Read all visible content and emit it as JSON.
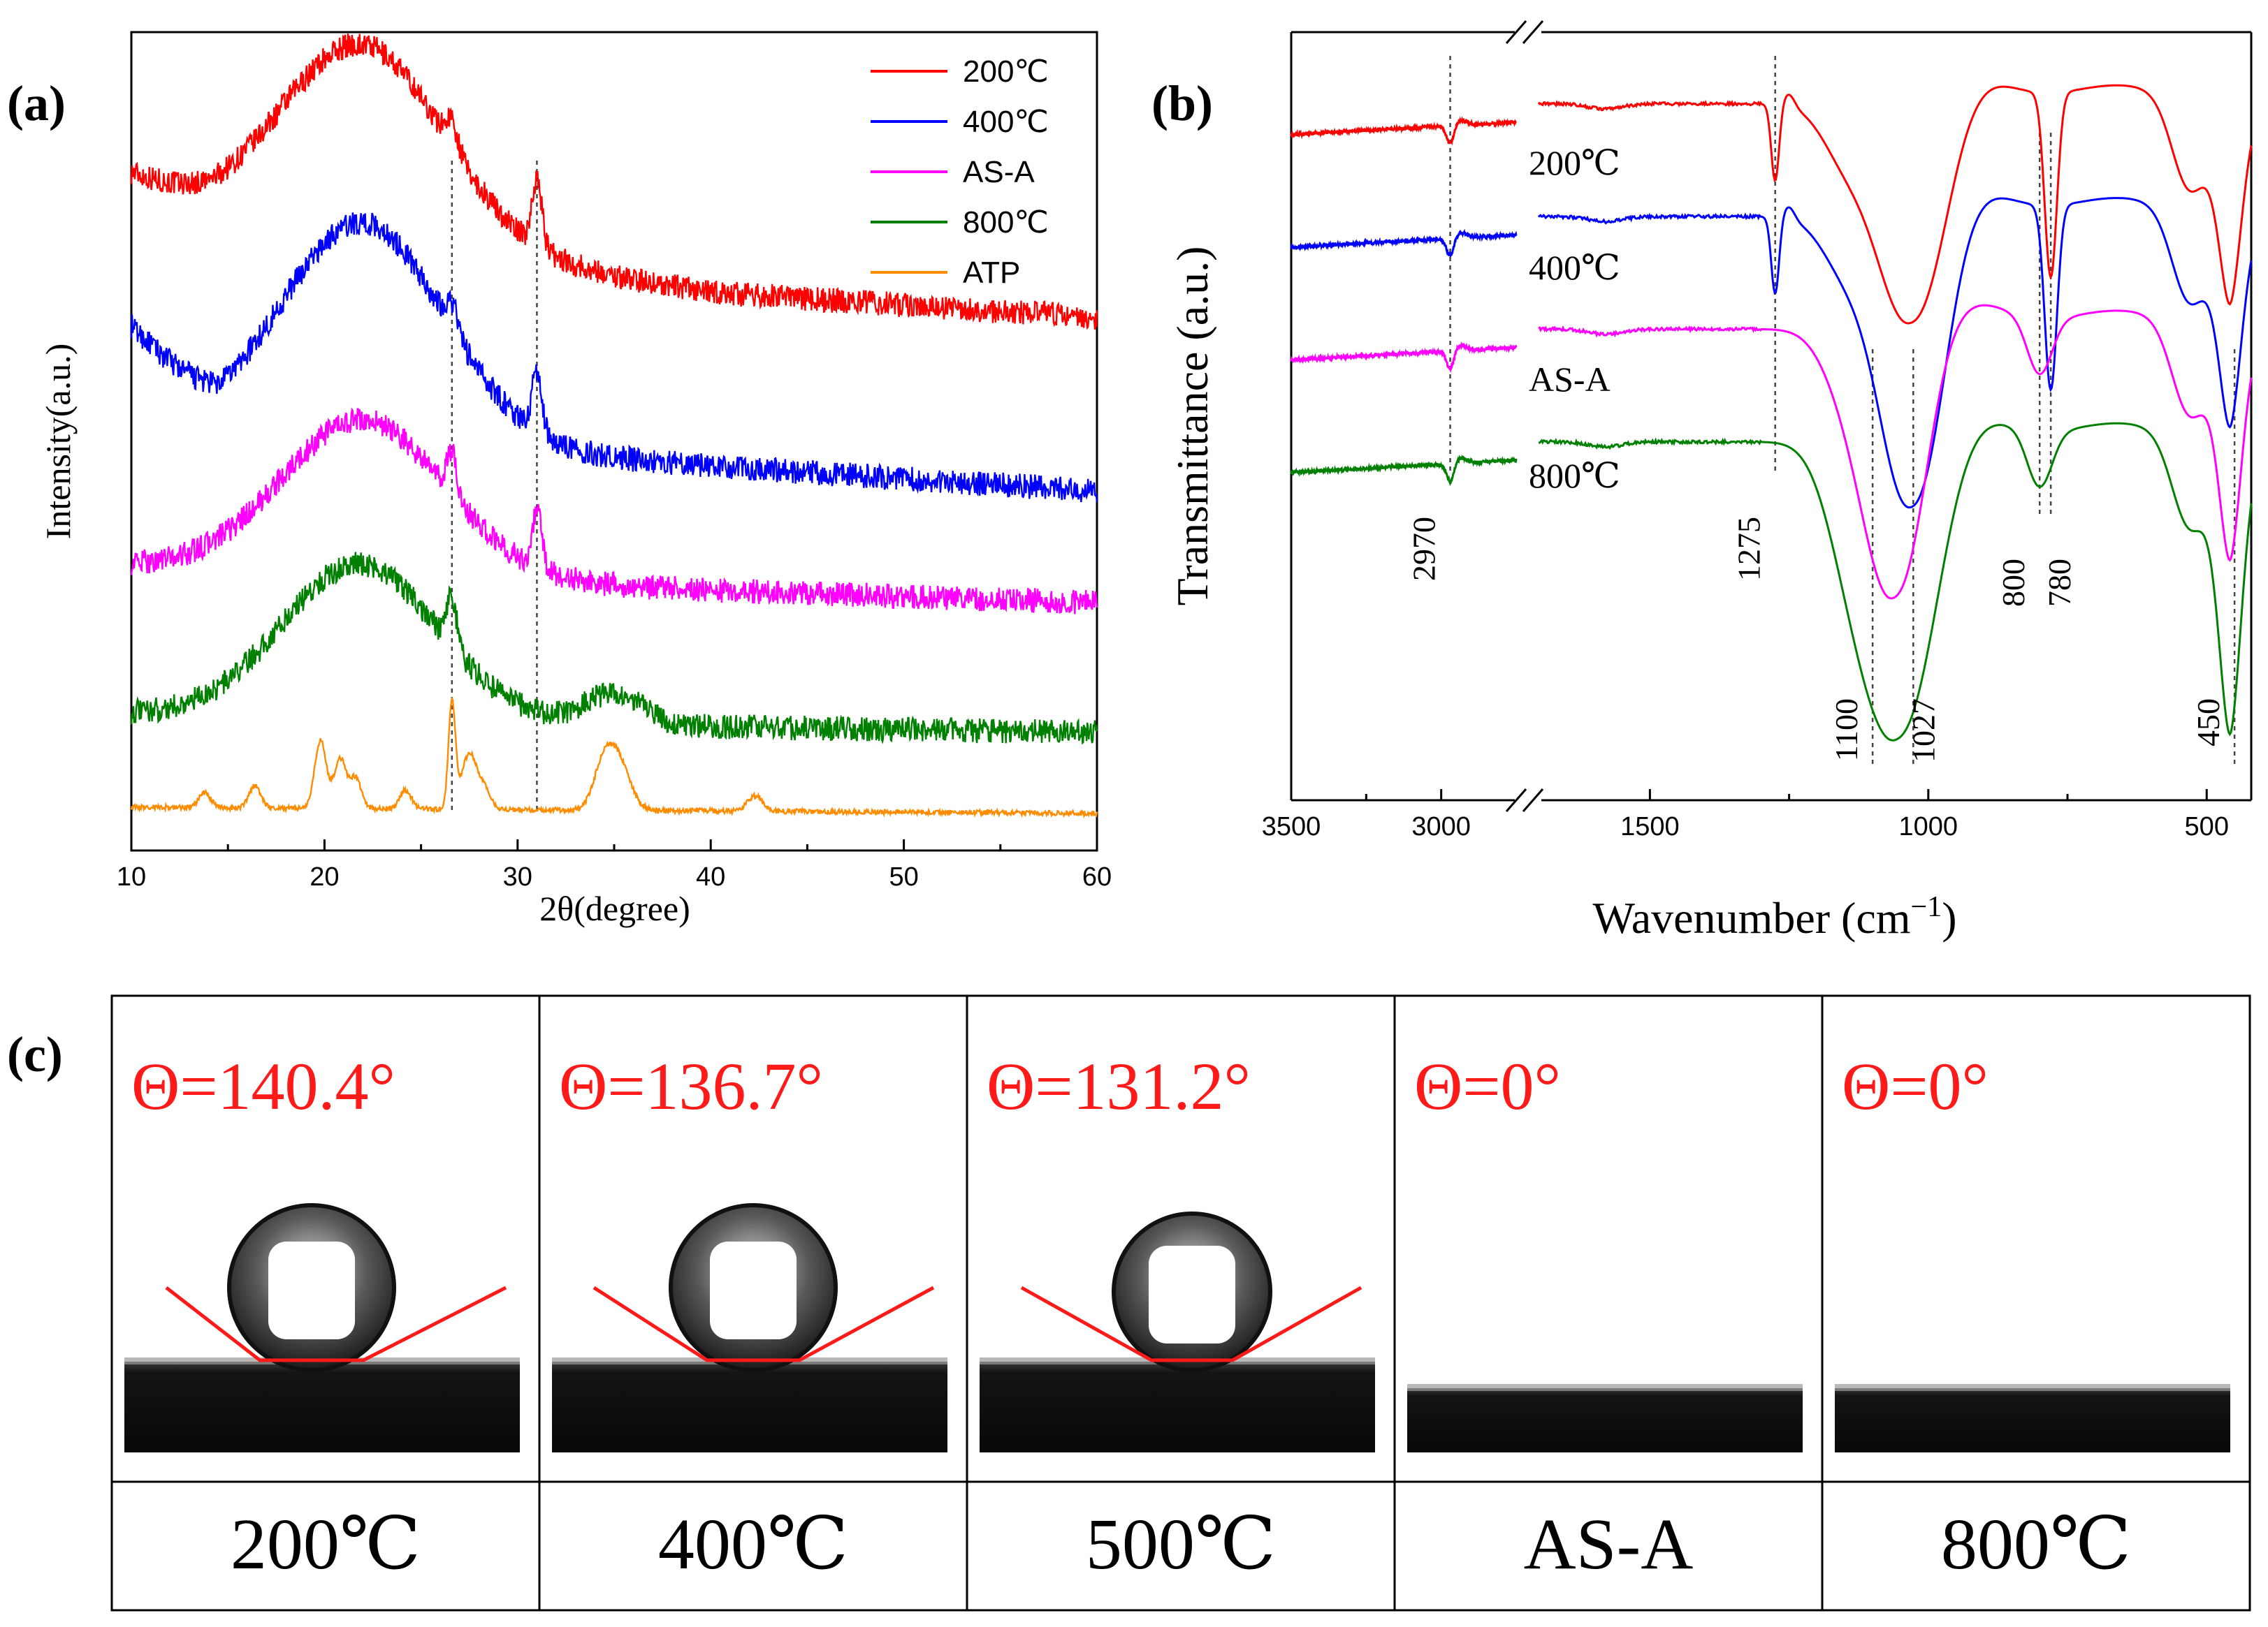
{
  "chart_data": [
    {
      "id": "a",
      "type": "line",
      "panel_label": "(a)",
      "xlabel": "2θ(degree)",
      "ylabel": "Intensity(a.u.)",
      "xlim": [
        10,
        60
      ],
      "xticks": [
        "10",
        "20",
        "30",
        "40",
        "50",
        "60"
      ],
      "yticks": false,
      "legend": "top-right",
      "reference_lines_x": [
        26.6,
        31.0
      ],
      "series": [
        {
          "name": "200℃",
          "color": "#ff0000",
          "offset": 4.0,
          "noise": 0.1,
          "peaks": [
            [
              22.0,
              1.55,
              4.2
            ],
            [
              31.0,
              0.55,
              0.25
            ],
            [
              26.6,
              0.22,
              0.3
            ],
            [
              13.0,
              0.0,
              1.0
            ]
          ],
          "baseline": [
            [
              10,
              1.15
            ],
            [
              14,
              0.85
            ],
            [
              40,
              0.2
            ],
            [
              60,
              0.0
            ]
          ]
        },
        {
          "name": "400℃",
          "color": "#0000ff",
          "offset": 2.6,
          "noise": 0.1,
          "peaks": [
            [
              22.0,
              1.75,
              4.2
            ],
            [
              31.0,
              0.5,
              0.25
            ],
            [
              26.6,
              0.22,
              0.3
            ]
          ],
          "baseline": [
            [
              10,
              1.3
            ],
            [
              14.5,
              0.5
            ],
            [
              40,
              0.2
            ],
            [
              60,
              0.0
            ]
          ]
        },
        {
          "name": "AS-A",
          "color": "#ff00ff",
          "offset": 1.7,
          "noise": 0.1,
          "peaks": [
            [
              22.0,
              1.25,
              4.2
            ],
            [
              31.0,
              0.45,
              0.25
            ],
            [
              26.6,
              0.35,
              0.25
            ]
          ],
          "baseline": [
            [
              10,
              0.3
            ],
            [
              40,
              0.1
            ],
            [
              60,
              0.0
            ]
          ]
        },
        {
          "name": "800℃",
          "color": "#008000",
          "offset": 0.65,
          "noise": 0.1,
          "peaks": [
            [
              21.8,
              1.25,
              4.0
            ],
            [
              26.6,
              0.4,
              0.25
            ],
            [
              35.0,
              0.25,
              1.5
            ]
          ],
          "baseline": [
            [
              10,
              0.15
            ],
            [
              40,
              0.05
            ],
            [
              60,
              0.0
            ]
          ]
        },
        {
          "name": "ATP",
          "color": "#ff8c00",
          "offset": 0.0,
          "noise": 0.02,
          "peaks": [
            [
              13.8,
              0.12,
              0.3
            ],
            [
              16.4,
              0.18,
              0.3
            ],
            [
              19.8,
              0.55,
              0.3
            ],
            [
              20.8,
              0.4,
              0.3
            ],
            [
              21.6,
              0.25,
              0.3
            ],
            [
              24.2,
              0.15,
              0.3
            ],
            [
              26.6,
              0.85,
              0.18
            ],
            [
              27.5,
              0.45,
              0.4
            ],
            [
              28.3,
              0.15,
              0.3
            ],
            [
              34.4,
              0.3,
              0.5
            ],
            [
              35.2,
              0.4,
              0.6
            ],
            [
              42.3,
              0.12,
              0.4
            ]
          ],
          "baseline": [
            [
              10,
              0.05
            ],
            [
              60,
              0.0
            ]
          ]
        }
      ]
    },
    {
      "id": "b",
      "type": "line",
      "panel_label": "(b)",
      "xlabel": "Wavenumber (cm",
      "xlabel_sup": "−1",
      "xlabel_close": ")",
      "ylabel": "Transmittance (a.u.)",
      "x_segments": [
        [
          3500,
          2750
        ],
        [
          1700,
          420
        ]
      ],
      "xticks": [
        "3500",
        "3000",
        "1500",
        "1000",
        "500"
      ],
      "xtick_values": [
        3500,
        3000,
        1500,
        1000,
        500
      ],
      "yticks": false,
      "axis_break": true,
      "reference_lines_x": [
        2970,
        1275,
        1100,
        1027,
        800,
        780,
        450
      ],
      "annotations": [
        "2970",
        "1275",
        "1100",
        "1027",
        "800",
        "780",
        "450"
      ],
      "series": [
        {
          "name": "200℃",
          "color": "#ff0000",
          "offset": 3.3,
          "type": "200"
        },
        {
          "name": "400℃",
          "color": "#0000ff",
          "offset": 2.2,
          "type": "400"
        },
        {
          "name": "AS-A",
          "color": "#ff00ff",
          "offset": 1.1,
          "type": "asa"
        },
        {
          "name": "800℃",
          "color": "#008000",
          "offset": 0.0,
          "type": "800"
        }
      ]
    }
  ],
  "panel_c": {
    "panel_label": "(c)",
    "cells": [
      {
        "angle": "Θ=140.4°",
        "sample": "200℃",
        "has_drop": true
      },
      {
        "angle": "Θ=136.7°",
        "sample": "400℃",
        "has_drop": true
      },
      {
        "angle": "Θ=131.2°",
        "sample": "500℃",
        "has_drop": true
      },
      {
        "angle": "Θ=0°",
        "sample": "AS-A",
        "has_drop": false
      },
      {
        "angle": "Θ=0°",
        "sample": "800℃",
        "has_drop": false
      }
    ]
  }
}
